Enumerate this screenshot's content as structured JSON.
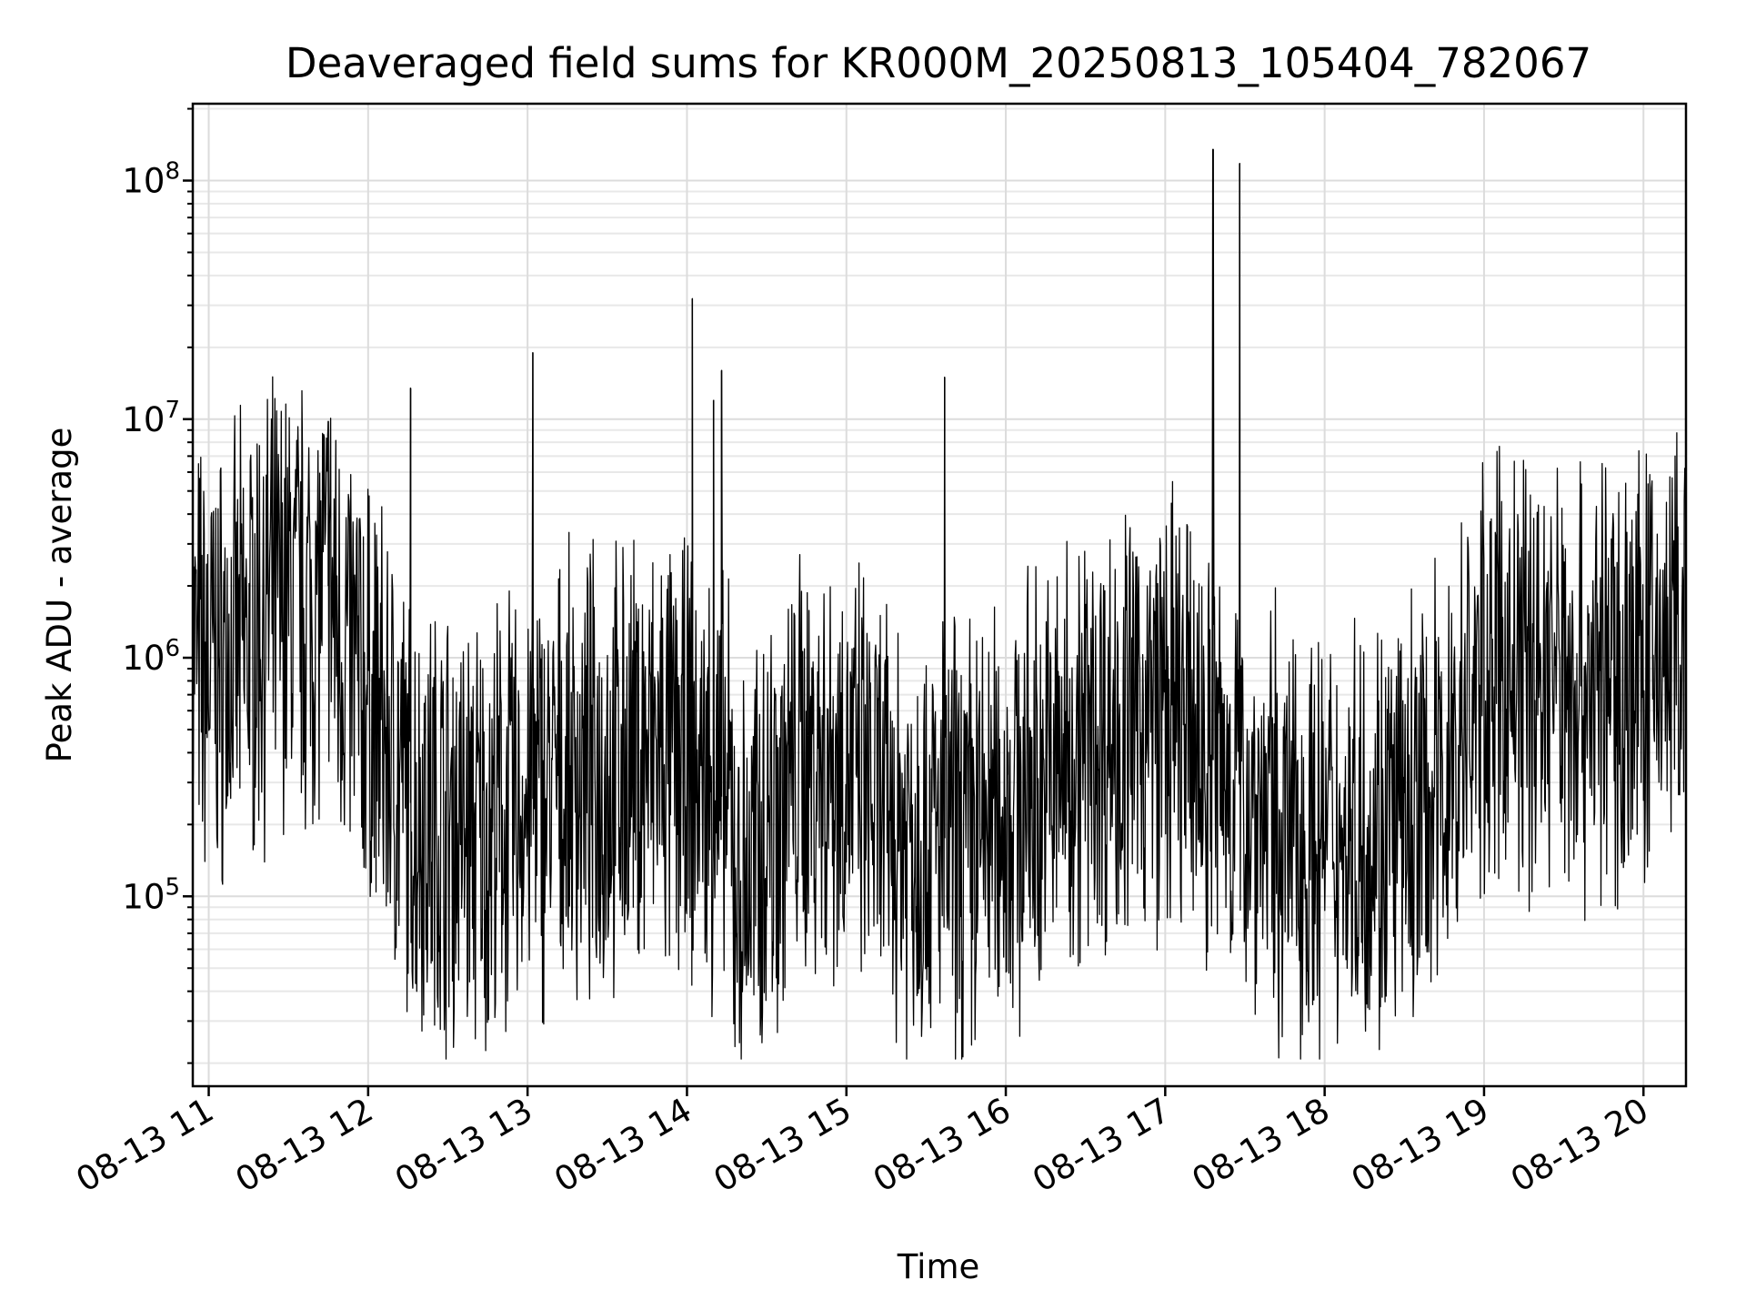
{
  "chart_data": {
    "type": "line",
    "title": "Deaveraged field sums for KR000M_20250813_105404_782067",
    "xlabel": "Time",
    "ylabel": "Peak ADU - average",
    "yscale": "log",
    "ylim": [
      16000,
      210000000
    ],
    "xlim": [
      "2025-08-13 10:54",
      "2025-08-13 20:16"
    ],
    "grid": true,
    "x_tick_labels": [
      "08-13 11",
      "08-13 12",
      "08-13 13",
      "08-13 14",
      "08-13 15",
      "08-13 16",
      "08-13 17",
      "08-13 18",
      "08-13 19",
      "08-13 20"
    ],
    "x_tick_values": [
      "2025-08-13 11:00",
      "2025-08-13 12:00",
      "2025-08-13 13:00",
      "2025-08-13 14:00",
      "2025-08-13 15:00",
      "2025-08-13 16:00",
      "2025-08-13 17:00",
      "2025-08-13 18:00",
      "2025-08-13 19:00",
      "2025-08-13 20:00"
    ],
    "y_tick_values": [
      100000,
      1000000,
      10000000,
      100000000
    ],
    "line_color": "#000000",
    "series": [
      {
        "x": [
          "2025-08-13 10:54",
          "2025-08-13 11:00",
          "2025-08-13 11:10",
          "2025-08-13 11:20",
          "2025-08-13 11:30",
          "2025-08-13 11:40",
          "2025-08-13 11:45",
          "2025-08-13 11:50",
          "2025-08-13 12:00",
          "2025-08-13 12:05",
          "2025-08-13 12:15",
          "2025-08-13 12:30",
          "2025-08-13 12:45",
          "2025-08-13 13:00",
          "2025-08-13 13:15",
          "2025-08-13 13:30",
          "2025-08-13 13:45",
          "2025-08-13 14:00",
          "2025-08-13 14:15",
          "2025-08-13 14:20",
          "2025-08-13 14:30",
          "2025-08-13 14:45",
          "2025-08-13 15:00",
          "2025-08-13 15:15",
          "2025-08-13 15:30",
          "2025-08-13 15:45",
          "2025-08-13 16:00",
          "2025-08-13 16:15",
          "2025-08-13 16:30",
          "2025-08-13 16:45",
          "2025-08-13 17:00",
          "2025-08-13 17:15",
          "2025-08-13 17:30",
          "2025-08-13 17:45",
          "2025-08-13 18:00",
          "2025-08-13 18:15",
          "2025-08-13 18:30",
          "2025-08-13 18:45",
          "2025-08-13 19:00",
          "2025-08-13 19:15",
          "2025-08-13 19:30",
          "2025-08-13 19:45",
          "2025-08-13 20:00",
          "2025-08-13 20:16"
        ],
        "values": [
          1000000,
          900000,
          1000000,
          1500000,
          1800000,
          1600000,
          2000000,
          1200000,
          700000,
          500000,
          250000,
          200000,
          180000,
          250000,
          300000,
          320000,
          380000,
          350000,
          250000,
          90000,
          200000,
          380000,
          350000,
          200000,
          180000,
          170000,
          220000,
          300000,
          450000,
          500000,
          600000,
          400000,
          280000,
          180000,
          160000,
          200000,
          180000,
          300000,
          800000,
          900000,
          850000,
          800000,
          900000,
          1200000
        ]
      }
    ],
    "spikes": [
      {
        "x": "2025-08-13 13:02",
        "y": 19000000
      },
      {
        "x": "2025-08-13 14:02",
        "y": 32000000
      },
      {
        "x": "2025-08-13 14:10",
        "y": 12000000
      },
      {
        "x": "2025-08-13 14:13",
        "y": 16000000
      },
      {
        "x": "2025-08-13 15:37",
        "y": 15000000
      },
      {
        "x": "2025-08-13 17:18",
        "y": 135000000
      },
      {
        "x": "2025-08-13 17:28",
        "y": 118000000
      },
      {
        "x": "2025-08-13 12:16",
        "y": 13500000
      },
      {
        "x": "2025-08-13 11:45",
        "y": 9800000
      }
    ]
  }
}
